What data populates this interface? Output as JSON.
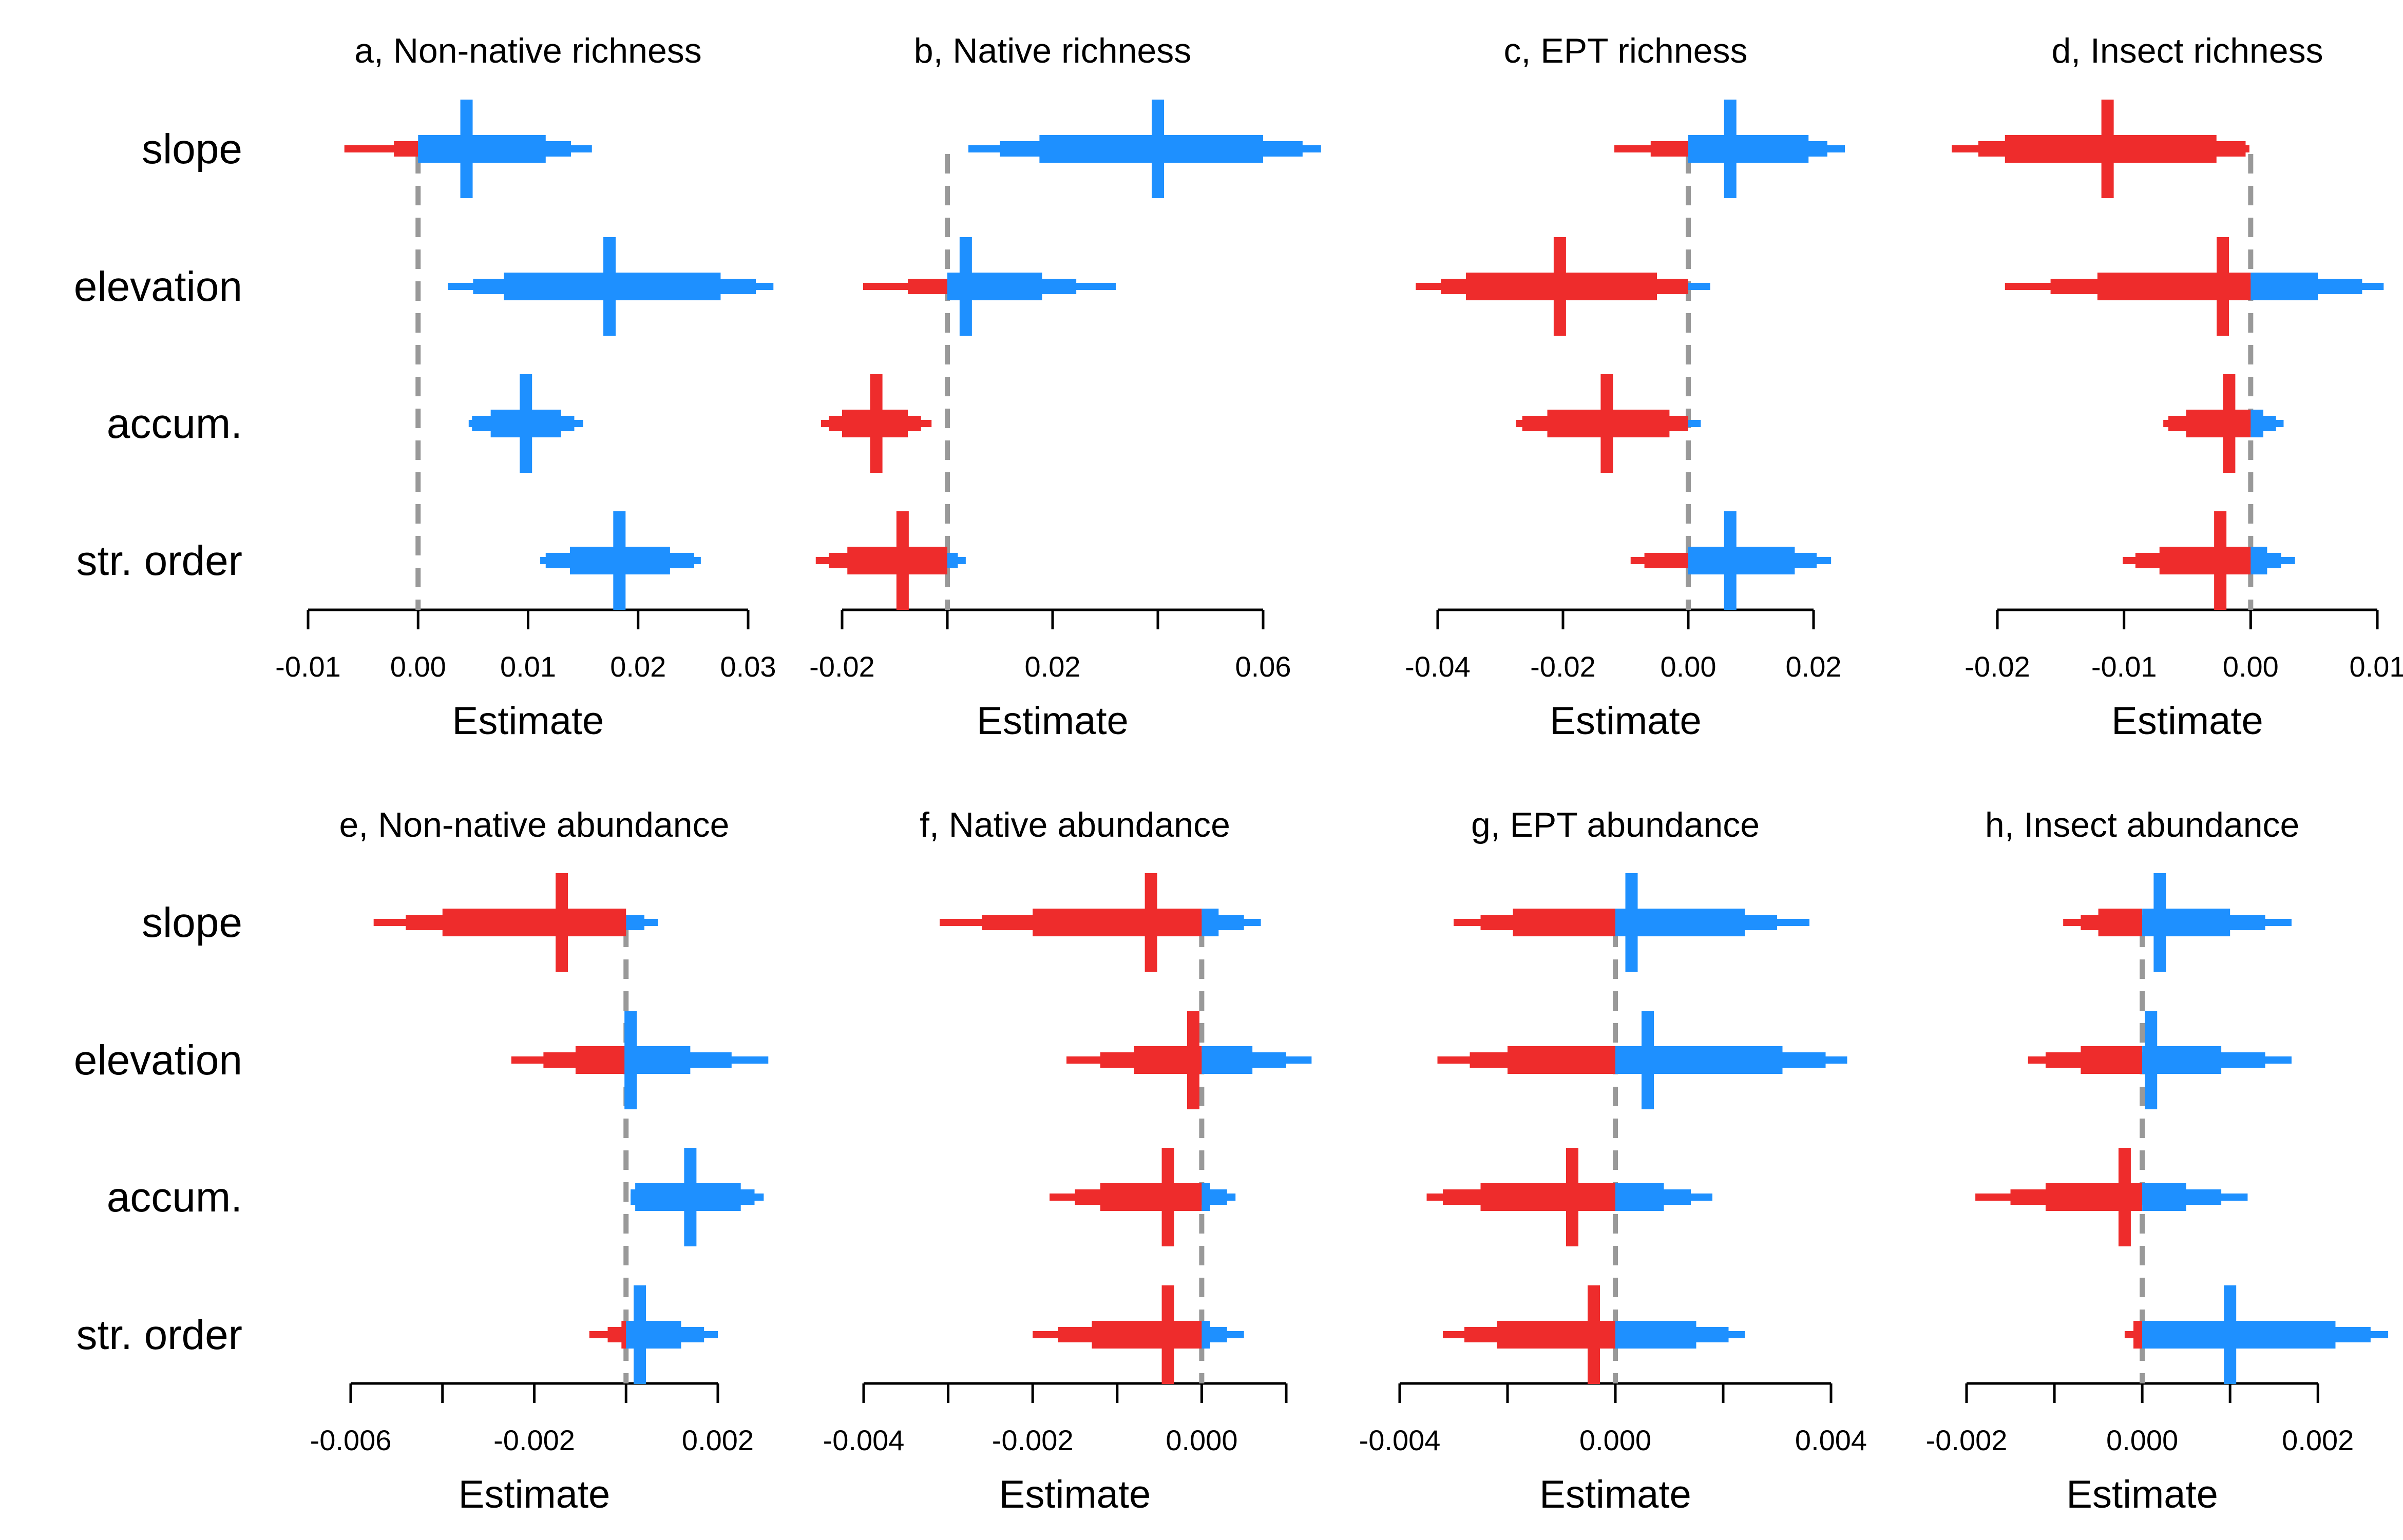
{
  "colors": {
    "negative": "#EE2C2C",
    "positive": "#1E90FF",
    "zero_line": "#999999",
    "axis": "#000000"
  },
  "row_labels": [
    "slope",
    "elevation",
    "accum.",
    "str. order"
  ],
  "chart_data": [
    {
      "type": "interval",
      "title": "a, Non-native richness",
      "xlabel": "Estimate",
      "xlim": [
        -0.01,
        0.03
      ],
      "ticks": [
        -0.01,
        0.0,
        0.01,
        0.02,
        0.03
      ],
      "tick_labels": [
        "-0.01",
        "0.00",
        "0.01",
        "0.02",
        "0.03"
      ],
      "categories": [
        "slope",
        "elevation",
        "accum.",
        "str. order"
      ],
      "estimates": [
        {
          "median": 0.0044,
          "ci50": [
            0.0,
            0.0116
          ],
          "ci80": [
            -0.0022,
            0.0139
          ],
          "ci95": [
            -0.0067,
            0.0158
          ]
        },
        {
          "median": 0.0174,
          "ci50": [
            0.0078,
            0.0275
          ],
          "ci80": [
            0.005,
            0.0307
          ],
          "ci95": [
            0.0027,
            0.0323
          ]
        },
        {
          "median": 0.0098,
          "ci50": [
            0.0066,
            0.013
          ],
          "ci80": [
            0.0049,
            0.0142
          ],
          "ci95": [
            0.0046,
            0.015
          ]
        },
        {
          "median": 0.0183,
          "ci50": [
            0.0138,
            0.0229
          ],
          "ci80": [
            0.0116,
            0.0251
          ],
          "ci95": [
            0.0111,
            0.0257
          ]
        }
      ]
    },
    {
      "type": "interval",
      "title": "b, Native richness",
      "xlabel": "Estimate",
      "xlim": [
        -0.02,
        0.06
      ],
      "ticks": [
        -0.02,
        0.0,
        0.02,
        0.04,
        0.06
      ],
      "tick_labels": [
        "-0.02",
        "",
        "0.02",
        "",
        "0.06"
      ],
      "categories": [
        "slope",
        "elevation",
        "accum.",
        "str. order"
      ],
      "estimates": [
        {
          "median": 0.04,
          "ci50": [
            0.0175,
            0.06
          ],
          "ci80": [
            0.01,
            0.0675
          ],
          "ci95": [
            0.004,
            0.071
          ]
        },
        {
          "median": 0.0035,
          "ci50": [
            0.0,
            0.018
          ],
          "ci80": [
            -0.0075,
            0.0245
          ],
          "ci95": [
            -0.016,
            0.032
          ]
        },
        {
          "median": -0.0135,
          "ci50": [
            -0.02,
            -0.0075
          ],
          "ci80": [
            -0.0225,
            -0.005
          ],
          "ci95": [
            -0.024,
            -0.003
          ]
        },
        {
          "median": -0.0085,
          "ci50": [
            -0.019,
            0.0
          ],
          "ci80": [
            -0.0225,
            0.002
          ],
          "ci95": [
            -0.025,
            0.0035
          ]
        }
      ]
    },
    {
      "type": "interval",
      "title": "c, EPT richness",
      "xlabel": "Estimate",
      "xlim": [
        -0.04,
        0.02
      ],
      "ticks": [
        -0.04,
        -0.02,
        0.0,
        0.02
      ],
      "tick_labels": [
        "-0.04",
        "-0.02",
        "0.00",
        "0.02"
      ],
      "categories": [
        "slope",
        "elevation",
        "accum.",
        "str. order"
      ],
      "estimates": [
        {
          "median": 0.0067,
          "ci50": [
            0.0,
            0.0192
          ],
          "ci80": [
            -0.006,
            0.0222
          ],
          "ci95": [
            -0.0118,
            0.025
          ]
        },
        {
          "median": -0.0205,
          "ci50": [
            -0.0355,
            -0.005
          ],
          "ci80": [
            -0.0395,
            0.0
          ],
          "ci95": [
            -0.0435,
            0.0035
          ]
        },
        {
          "median": -0.013,
          "ci50": [
            -0.0225,
            -0.003
          ],
          "ci80": [
            -0.0265,
            0.0
          ],
          "ci95": [
            -0.0275,
            0.002
          ]
        },
        {
          "median": 0.0067,
          "ci50": [
            0.0,
            0.017
          ],
          "ci80": [
            -0.007,
            0.0205
          ],
          "ci95": [
            -0.0092,
            0.0228
          ]
        }
      ]
    },
    {
      "type": "interval",
      "title": "d, Insect richness",
      "xlabel": "Estimate",
      "xlim": [
        -0.02,
        0.01
      ],
      "ticks": [
        -0.02,
        -0.01,
        0.0,
        0.01
      ],
      "tick_labels": [
        "-0.02",
        "-0.01",
        "0.00",
        "0.01"
      ],
      "categories": [
        "slope",
        "elevation",
        "accum.",
        "str. order"
      ],
      "estimates": [
        {
          "median": -0.0113,
          "ci50": [
            -0.0194,
            -0.0027
          ],
          "ci80": [
            -0.0215,
            -0.0004
          ],
          "ci95": [
            -0.0236,
            -0.0001
          ]
        },
        {
          "median": -0.0022,
          "ci50": [
            -0.0121,
            0.0053
          ],
          "ci80": [
            -0.0158,
            0.0088
          ],
          "ci95": [
            -0.0194,
            0.0105
          ]
        },
        {
          "median": -0.0017,
          "ci50": [
            -0.0051,
            0.001
          ],
          "ci80": [
            -0.0065,
            0.002
          ],
          "ci95": [
            -0.0069,
            0.0026
          ]
        },
        {
          "median": -0.0024,
          "ci50": [
            -0.0072,
            0.0013
          ],
          "ci80": [
            -0.0091,
            0.0024
          ],
          "ci95": [
            -0.0101,
            0.0035
          ]
        }
      ]
    },
    {
      "type": "interval",
      "title": "e, Non-native abundance",
      "xlabel": "Estimate",
      "xlim": [
        -0.006,
        0.002
      ],
      "ticks": [
        -0.006,
        -0.004,
        -0.002,
        0.0,
        0.002
      ],
      "tick_labels": [
        "-0.006",
        "",
        "-0.002",
        "",
        "0.002"
      ],
      "categories": [
        "slope",
        "elevation",
        "accum.",
        "str. order"
      ],
      "estimates": [
        {
          "median": -0.0014,
          "ci50": [
            -0.004,
            0.0
          ],
          "ci80": [
            -0.0048,
            0.0004
          ],
          "ci95": [
            -0.0055,
            0.0007
          ]
        },
        {
          "median": 0.0001,
          "ci50": [
            -0.0011,
            0.0014
          ],
          "ci80": [
            -0.0018,
            0.0023
          ],
          "ci95": [
            -0.0025,
            0.0031
          ]
        },
        {
          "median": 0.0014,
          "ci50": [
            0.0002,
            0.0025
          ],
          "ci80": [
            0.0001,
            0.0028
          ],
          "ci95": [
            0.0001,
            0.003
          ]
        },
        {
          "median": 0.0003,
          "ci50": [
            -0.0001,
            0.0012
          ],
          "ci80": [
            -0.0004,
            0.0017
          ],
          "ci95": [
            -0.0008,
            0.002
          ]
        }
      ]
    },
    {
      "type": "interval",
      "title": "f, Native abundance",
      "xlabel": "Estimate",
      "xlim": [
        -0.004,
        0.001
      ],
      "ticks": [
        -0.004,
        -0.003,
        -0.002,
        -0.001,
        0.0,
        0.001
      ],
      "tick_labels": [
        "-0.004",
        "",
        "-0.002",
        "",
        "0.000",
        ""
      ],
      "categories": [
        "slope",
        "elevation",
        "accum.",
        "str. order"
      ],
      "estimates": [
        {
          "median": -0.0006,
          "ci50": [
            -0.002,
            0.0002
          ],
          "ci80": [
            -0.0026,
            0.0005
          ],
          "ci95": [
            -0.0031,
            0.0007
          ]
        },
        {
          "median": -0.0001,
          "ci50": [
            -0.0008,
            0.0006
          ],
          "ci80": [
            -0.0012,
            0.001
          ],
          "ci95": [
            -0.0016,
            0.0013
          ]
        },
        {
          "median": -0.0004,
          "ci50": [
            -0.0012,
            0.0001
          ],
          "ci80": [
            -0.0015,
            0.0003
          ],
          "ci95": [
            -0.0018,
            0.0004
          ]
        },
        {
          "median": -0.0004,
          "ci50": [
            -0.0013,
            0.0001
          ],
          "ci80": [
            -0.0017,
            0.0003
          ],
          "ci95": [
            -0.002,
            0.0005
          ]
        }
      ]
    },
    {
      "type": "interval",
      "title": "g, EPT abundance",
      "xlabel": "Estimate",
      "xlim": [
        -0.004,
        0.004
      ],
      "ticks": [
        -0.004,
        -0.002,
        0.0,
        0.002,
        0.004
      ],
      "tick_labels": [
        "-0.004",
        "",
        "0.000",
        "",
        "0.004"
      ],
      "categories": [
        "slope",
        "elevation",
        "accum.",
        "str. order"
      ],
      "estimates": [
        {
          "median": 0.0003,
          "ci50": [
            -0.0019,
            0.0024
          ],
          "ci80": [
            -0.0025,
            0.003
          ],
          "ci95": [
            -0.003,
            0.0036
          ]
        },
        {
          "median": 0.0006,
          "ci50": [
            -0.002,
            0.0031
          ],
          "ci80": [
            -0.0027,
            0.0039
          ],
          "ci95": [
            -0.0033,
            0.0043
          ]
        },
        {
          "median": -0.0008,
          "ci50": [
            -0.0025,
            0.0009
          ],
          "ci80": [
            -0.0032,
            0.0014
          ],
          "ci95": [
            -0.0035,
            0.0018
          ]
        },
        {
          "median": -0.0004,
          "ci50": [
            -0.0022,
            0.0015
          ],
          "ci80": [
            -0.0028,
            0.0021
          ],
          "ci95": [
            -0.0032,
            0.0024
          ]
        }
      ]
    },
    {
      "type": "interval",
      "title": "h, Insect abundance",
      "xlabel": "Estimate",
      "xlim": [
        -0.002,
        0.0027
      ],
      "ticks": [
        -0.002,
        -0.001,
        0.0,
        0.001,
        0.002
      ],
      "tick_labels": [
        "-0.002",
        "",
        "0.000",
        "",
        "0.002"
      ],
      "categories": [
        "slope",
        "elevation",
        "accum.",
        "str. order"
      ],
      "estimates": [
        {
          "median": 0.0002,
          "ci50": [
            -0.0005,
            0.001
          ],
          "ci80": [
            -0.0007,
            0.0014
          ],
          "ci95": [
            -0.0009,
            0.0017
          ]
        },
        {
          "median": 0.0001,
          "ci50": [
            -0.0007,
            0.0009
          ],
          "ci80": [
            -0.0011,
            0.0014
          ],
          "ci95": [
            -0.0013,
            0.0017
          ]
        },
        {
          "median": -0.0002,
          "ci50": [
            -0.0011,
            0.0005
          ],
          "ci80": [
            -0.0015,
            0.0009
          ],
          "ci95": [
            -0.0019,
            0.0012
          ]
        },
        {
          "median": 0.001,
          "ci50": [
            -0.0001,
            0.0022
          ],
          "ci80": [
            -0.0001,
            0.0026
          ],
          "ci95": [
            -0.0002,
            0.0028
          ]
        }
      ]
    }
  ]
}
